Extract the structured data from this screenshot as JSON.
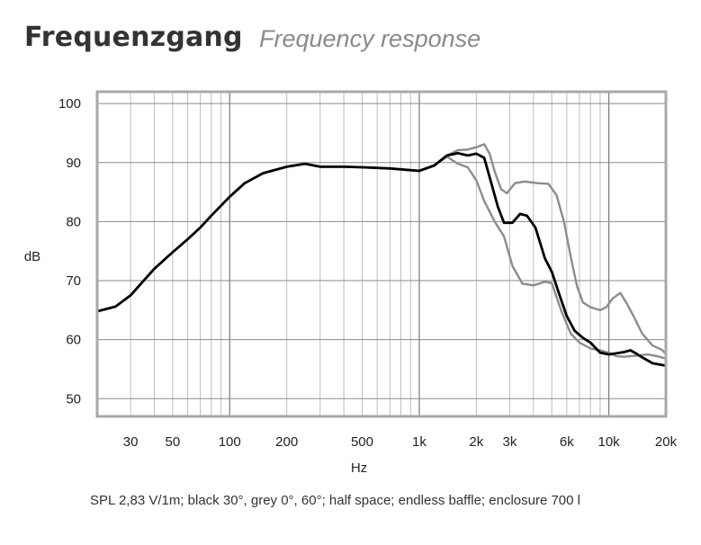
{
  "header": {
    "title_de": "Frequenzgang",
    "title_en": "Frequency response"
  },
  "caption": "SPL 2,83 V/1m; black 30°, grey 0°, 60°; half space; endless baffle; enclosure 700 l",
  "chart_data": {
    "type": "line",
    "title": "Frequenzgang",
    "subtitle": "Frequency response",
    "xlabel": "Hz",
    "ylabel": "dB",
    "xscale": "log",
    "xlim": [
      20,
      20000
    ],
    "ylim": [
      47,
      102
    ],
    "grid": true,
    "x_ticks": [
      {
        "value": 30,
        "label": "30"
      },
      {
        "value": 50,
        "label": "50"
      },
      {
        "value": 100,
        "label": "100"
      },
      {
        "value": 200,
        "label": "200"
      },
      {
        "value": 500,
        "label": "500"
      },
      {
        "value": 1000,
        "label": "1k"
      },
      {
        "value": 2000,
        "label": "2k"
      },
      {
        "value": 3000,
        "label": "3k"
      },
      {
        "value": 6000,
        "label": "6k"
      },
      {
        "value": 10000,
        "label": "10k"
      },
      {
        "value": 20000,
        "label": "20k"
      }
    ],
    "y_ticks": [
      50,
      60,
      70,
      80,
      90,
      100
    ],
    "series": [
      {
        "color": "#8c8c8c",
        "points": [
          [
            20,
            64.8
          ],
          [
            25,
            65.6
          ],
          [
            30,
            67.5
          ],
          [
            40,
            72
          ],
          [
            50,
            74.8
          ],
          [
            60,
            77
          ],
          [
            70,
            79
          ],
          [
            80,
            81
          ],
          [
            100,
            84.2
          ],
          [
            120,
            86.5
          ],
          [
            150,
            88.2
          ],
          [
            200,
            89.3
          ],
          [
            250,
            89.8
          ],
          [
            300,
            89.3
          ],
          [
            400,
            89.3
          ],
          [
            500,
            89.2
          ],
          [
            700,
            89
          ],
          [
            1000,
            88.6
          ],
          [
            1200,
            89.5
          ],
          [
            1400,
            91.2
          ],
          [
            1600,
            92.1
          ],
          [
            1800,
            92.2
          ],
          [
            2000,
            92.6
          ],
          [
            2200,
            93.1
          ],
          [
            2350,
            91.5
          ],
          [
            2500,
            88.5
          ],
          [
            2700,
            85.5
          ],
          [
            2900,
            84.8
          ],
          [
            3200,
            86.5
          ],
          [
            3600,
            86.8
          ],
          [
            4200,
            86.5
          ],
          [
            4800,
            86.4
          ],
          [
            5300,
            84.5
          ],
          [
            5800,
            80
          ],
          [
            6300,
            74
          ],
          [
            6800,
            69
          ],
          [
            7300,
            66.3
          ],
          [
            8000,
            65.5
          ],
          [
            9000,
            65
          ],
          [
            9700,
            65.5
          ],
          [
            10500,
            67
          ],
          [
            11500,
            67.9
          ],
          [
            12500,
            66
          ],
          [
            13500,
            64
          ],
          [
            15000,
            61
          ],
          [
            17000,
            59
          ],
          [
            19000,
            58.3
          ],
          [
            20000,
            57.6
          ]
        ]
      },
      {
        "color": "#8c8c8c",
        "points": [
          [
            20,
            64.8
          ],
          [
            25,
            65.6
          ],
          [
            30,
            67.5
          ],
          [
            40,
            72
          ],
          [
            50,
            74.8
          ],
          [
            60,
            77
          ],
          [
            70,
            79
          ],
          [
            80,
            81
          ],
          [
            100,
            84.2
          ],
          [
            120,
            86.5
          ],
          [
            150,
            88.2
          ],
          [
            200,
            89.3
          ],
          [
            250,
            89.8
          ],
          [
            300,
            89.3
          ],
          [
            400,
            89.3
          ],
          [
            500,
            89.2
          ],
          [
            700,
            89
          ],
          [
            1000,
            88.6
          ],
          [
            1200,
            89.5
          ],
          [
            1400,
            91
          ],
          [
            1600,
            89.8
          ],
          [
            1800,
            89.2
          ],
          [
            2000,
            87
          ],
          [
            2200,
            83.5
          ],
          [
            2500,
            80
          ],
          [
            2800,
            77.5
          ],
          [
            3100,
            72.5
          ],
          [
            3500,
            69.5
          ],
          [
            4000,
            69.2
          ],
          [
            4600,
            69.8
          ],
          [
            5000,
            69.6
          ],
          [
            5600,
            65
          ],
          [
            6300,
            61
          ],
          [
            7000,
            59.5
          ],
          [
            8000,
            58.5
          ],
          [
            9000,
            58.2
          ],
          [
            10000,
            57.8
          ],
          [
            11000,
            57.2
          ],
          [
            12000,
            57.1
          ],
          [
            14000,
            57.3
          ],
          [
            16000,
            57.5
          ],
          [
            18000,
            57.2
          ],
          [
            20000,
            56.8
          ]
        ]
      },
      {
        "color": "#000000",
        "points": [
          [
            20,
            64.8
          ],
          [
            25,
            65.6
          ],
          [
            30,
            67.5
          ],
          [
            40,
            72
          ],
          [
            50,
            74.8
          ],
          [
            60,
            77
          ],
          [
            70,
            79
          ],
          [
            80,
            81
          ],
          [
            100,
            84.2
          ],
          [
            120,
            86.5
          ],
          [
            150,
            88.2
          ],
          [
            200,
            89.3
          ],
          [
            250,
            89.8
          ],
          [
            300,
            89.3
          ],
          [
            400,
            89.3
          ],
          [
            500,
            89.2
          ],
          [
            700,
            89
          ],
          [
            1000,
            88.6
          ],
          [
            1200,
            89.5
          ],
          [
            1400,
            91.2
          ],
          [
            1600,
            91.6
          ],
          [
            1800,
            91.2
          ],
          [
            2000,
            91.5
          ],
          [
            2200,
            90.8
          ],
          [
            2400,
            86.5
          ],
          [
            2600,
            82.5
          ],
          [
            2800,
            79.8
          ],
          [
            3100,
            79.8
          ],
          [
            3400,
            81.3
          ],
          [
            3700,
            81
          ],
          [
            4100,
            79
          ],
          [
            4600,
            73.8
          ],
          [
            5000,
            71.5
          ],
          [
            5500,
            67.5
          ],
          [
            6000,
            64
          ],
          [
            6600,
            61.5
          ],
          [
            7300,
            60.3
          ],
          [
            8000,
            59.5
          ],
          [
            9000,
            57.8
          ],
          [
            10000,
            57.5
          ],
          [
            11000,
            57.7
          ],
          [
            12000,
            57.9
          ],
          [
            13000,
            58.2
          ],
          [
            14000,
            57.6
          ],
          [
            15000,
            57
          ],
          [
            17000,
            56
          ],
          [
            20000,
            55.6
          ]
        ]
      }
    ]
  }
}
